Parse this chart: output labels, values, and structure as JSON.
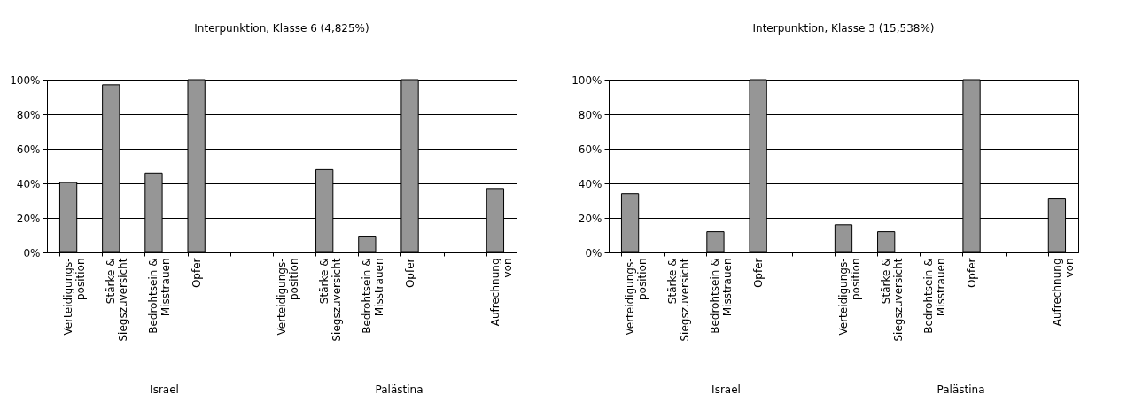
{
  "chart_data": [
    {
      "type": "bar",
      "title": "Interpunktion, Klasse 6 (4,825%)",
      "categories": [
        "Verteidigungs-\nposition",
        "Stärke &\nSiegszuversicht",
        "Bedrohtsein &\nMisstrauen",
        "Opfer",
        null,
        "Verteidigungs-\nposition",
        "Stärke &\nSiegszuversicht",
        "Bedrohtsein &\nMisstrauen",
        "Opfer",
        null,
        "Aufrechnung\nvon"
      ],
      "values": [
        40.5,
        97,
        46,
        100,
        null,
        null,
        48,
        9,
        100,
        null,
        37
      ],
      "color": "#969696",
      "ylim": [
        0,
        100
      ],
      "yticks": [
        {
          "value": 0,
          "label": "0%"
        },
        {
          "value": 20,
          "label": "20%"
        },
        {
          "value": 40,
          "label": "40%"
        },
        {
          "value": 60,
          "label": "60%"
        },
        {
          "value": 80,
          "label": "80%"
        },
        {
          "value": 100,
          "label": "100%"
        }
      ],
      "grid": "y",
      "annotations": [
        "Israel",
        "Palästina"
      ]
    },
    {
      "type": "bar",
      "title": "Interpunktion, Klasse 3 (15,538%)",
      "categories": [
        "Verteidigungs-\nposition",
        "Stärke &\nSiegszuversicht",
        "Bedrohtsein &\nMisstrauen",
        "Opfer",
        null,
        "Verteidigungs-\nposition",
        "Stärke &\nSiegszuversicht",
        "Bedrohtsein &\nMisstrauen",
        "Opfer",
        null,
        "Aufrechnung\nvon"
      ],
      "values": [
        34,
        null,
        12,
        100,
        null,
        16,
        12,
        null,
        100,
        null,
        31
      ],
      "color": "#969696",
      "ylim": [
        0,
        100
      ],
      "yticks": [
        {
          "value": 0,
          "label": "0%"
        },
        {
          "value": 20,
          "label": "20%"
        },
        {
          "value": 40,
          "label": "40%"
        },
        {
          "value": 60,
          "label": "60%"
        },
        {
          "value": 80,
          "label": "80%"
        },
        {
          "value": 100,
          "label": "100%"
        }
      ],
      "grid": "y",
      "annotations": [
        "Israel",
        "Palästina"
      ]
    }
  ]
}
